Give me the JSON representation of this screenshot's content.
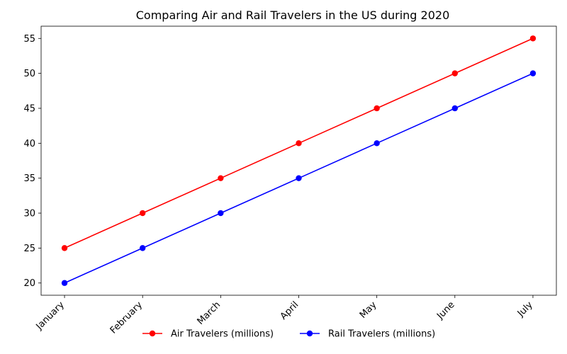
{
  "chart_data": {
    "type": "line",
    "title": "Comparing Air and Rail Travelers in the US during 2020",
    "xlabel": "",
    "ylabel": "",
    "categories": [
      "January",
      "February",
      "March",
      "April",
      "May",
      "June",
      "July"
    ],
    "series": [
      {
        "name": "Air Travelers (millions)",
        "values": [
          25,
          30,
          35,
          40,
          45,
          50,
          55
        ],
        "color": "#ff0000"
      },
      {
        "name": "Rail Travelers (millions)",
        "values": [
          20,
          25,
          30,
          35,
          40,
          45,
          50
        ],
        "color": "#0000ff"
      }
    ],
    "ylim": [
      18.25,
      56.75
    ],
    "yticks": [
      20,
      25,
      30,
      35,
      40,
      45,
      50,
      55
    ],
    "grid": false,
    "legend": "bottom-center",
    "marker": "circle"
  }
}
